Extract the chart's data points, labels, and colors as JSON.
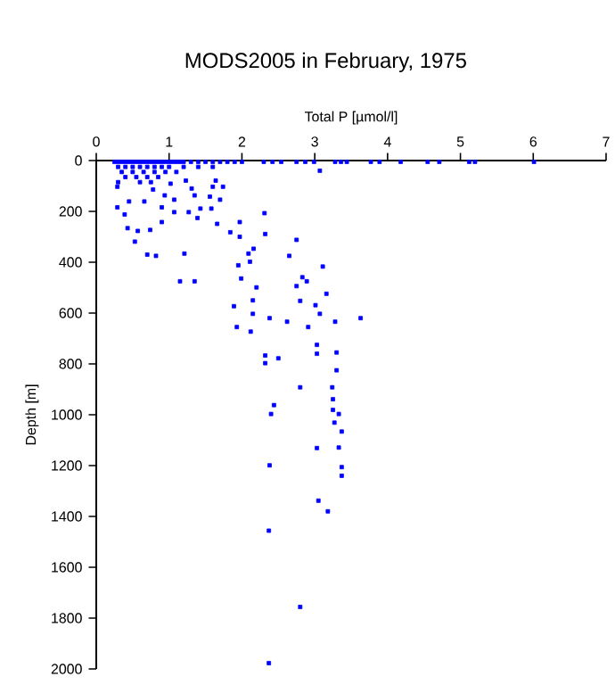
{
  "chart_data": {
    "type": "scatter",
    "title": "MODS2005 in February, 1975",
    "xlabel": "Total P [µmol/l]",
    "ylabel": "Depth [m]",
    "xlim": [
      0,
      7
    ],
    "xticks": [
      0,
      1,
      2,
      3,
      4,
      5,
      6,
      7
    ],
    "ylim": [
      2000,
      0
    ],
    "yticks": [
      0,
      200,
      400,
      600,
      800,
      1000,
      1200,
      1400,
      1600,
      1800,
      2000
    ],
    "marker": "square",
    "series": [
      {
        "color": "#0000ff",
        "x": [
          0.25,
          0.3,
          0.35,
          0.4,
          0.45,
          0.5,
          0.55,
          0.6,
          0.65,
          0.7,
          0.75,
          0.8,
          0.85,
          0.9,
          0.95,
          1.0,
          1.05,
          1.1,
          1.15,
          1.2,
          1.3,
          1.4,
          1.5,
          1.6,
          1.7,
          1.8,
          1.9,
          2.0,
          0.3,
          0.4,
          0.5,
          0.6,
          0.7,
          0.8,
          0.9,
          1.0,
          1.2,
          1.4,
          1.6,
          0.35,
          0.5,
          0.65,
          0.8,
          0.95,
          1.1,
          0.4,
          0.55,
          0.7,
          0.85,
          0.3,
          0.6,
          0.75,
          2.3,
          2.42,
          2.54,
          2.75,
          2.87,
          2.99,
          3.28,
          3.36,
          3.44,
          3.77,
          3.89,
          4.18,
          4.55,
          4.71,
          5.12,
          5.2,
          6.01,
          3.07,
          0.94,
          1.07,
          1.35,
          1.56,
          1.7,
          1.6,
          1.74,
          1.02,
          1.31,
          0.29,
          0.45,
          0.66,
          0.78,
          0.9,
          1.64,
          1.23,
          0.29,
          0.39,
          0.43,
          0.53,
          0.57,
          0.7,
          0.82,
          0.74,
          0.9,
          1.07,
          1.15,
          1.35,
          1.21,
          1.27,
          1.39,
          1.43,
          1.58,
          1.66,
          1.97,
          1.84,
          1.97,
          2.16,
          2.09,
          1.95,
          2.11,
          1.99,
          2.2,
          2.15,
          1.89,
          2.15,
          2.38,
          1.93,
          2.12,
          2.31,
          2.32,
          2.75,
          2.65,
          3.11,
          2.83,
          2.89,
          2.75,
          3.16,
          2.8,
          3.01,
          3.07,
          3.28,
          3.63,
          2.62,
          2.91,
          3.03,
          2.32,
          2.5,
          2.32,
          3.03,
          3.3,
          3.3,
          2.8,
          3.24,
          3.25,
          2.44,
          2.4,
          3.25,
          3.33,
          3.27,
          3.37,
          3.03,
          3.33,
          2.38,
          3.37,
          3.37,
          3.05,
          3.18,
          2.37,
          2.8,
          2.37
        ],
        "values": [
          5,
          5,
          5,
          5,
          5,
          5,
          5,
          5,
          5,
          5,
          5,
          5,
          5,
          5,
          5,
          5,
          5,
          5,
          5,
          5,
          5,
          5,
          5,
          5,
          5,
          5,
          5,
          5,
          25,
          25,
          25,
          25,
          25,
          25,
          25,
          25,
          25,
          25,
          25,
          45,
          45,
          45,
          45,
          45,
          45,
          65,
          65,
          65,
          65,
          85,
          85,
          85,
          5,
          5,
          5,
          5,
          5,
          5,
          5,
          5,
          5,
          5,
          5,
          5,
          5,
          5,
          5,
          5,
          5,
          40,
          137,
          154,
          137,
          142,
          154,
          103,
          103,
          91,
          110,
          103,
          161,
          161,
          114,
          184,
          79,
          79,
          184,
          212,
          266,
          319,
          277,
          370,
          375,
          273,
          242,
          203,
          475,
          475,
          366,
          203,
          226,
          189,
          189,
          249,
          242,
          282,
          300,
          347,
          366,
          412,
          398,
          464,
          499,
          550,
          573,
          603,
          620,
          655,
          673,
          207,
          289,
          312,
          375,
          417,
          459,
          475,
          494,
          524,
          552,
          569,
          603,
          634,
          620,
          634,
          655,
          725,
          767,
          778,
          797,
          760,
          755,
          825,
          892,
          892,
          939,
          962,
          997,
          981,
          997,
          1031,
          1066,
          1131,
          1129,
          1199,
          1206,
          1240,
          1338,
          1380,
          1456,
          1756,
          1977
        ]
      }
    ]
  }
}
